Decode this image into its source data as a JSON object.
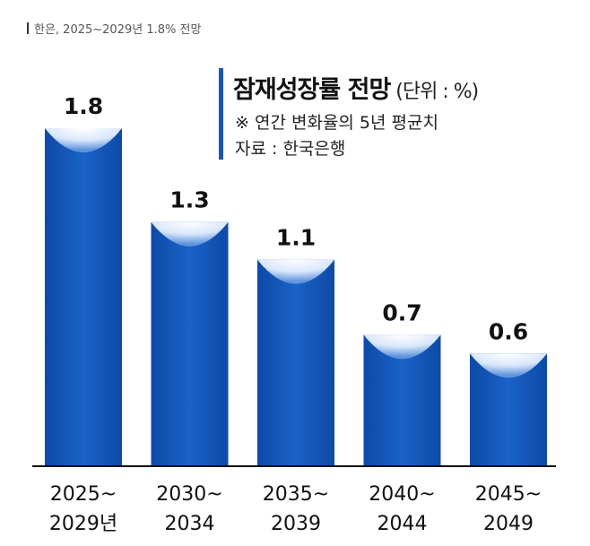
{
  "caption": "한은, 2025~2029년 1.8% 전망",
  "chart_data": {
    "type": "bar",
    "title": "잠재성장률 전망",
    "unit": "(단위 : %)",
    "note": "※ 연간 변화율의 5년 평균치",
    "source": "자료 : 한국은행",
    "categories": [
      [
        "2025~",
        "2029년"
      ],
      [
        "2030~",
        "2034"
      ],
      [
        "2035~",
        "2039"
      ],
      [
        "2040~",
        "2044"
      ],
      [
        "2045~",
        "2049"
      ]
    ],
    "values": [
      1.8,
      1.3,
      1.1,
      0.7,
      0.6
    ],
    "value_labels": [
      "1.8",
      "1.3",
      "1.1",
      "0.7",
      "0.6"
    ],
    "ylim": [
      0,
      1.8
    ],
    "colors": {
      "bar": "#1559b8",
      "bar_dark": "#0d47a1",
      "highlight": "#ffffff",
      "axis": "#111111"
    }
  }
}
